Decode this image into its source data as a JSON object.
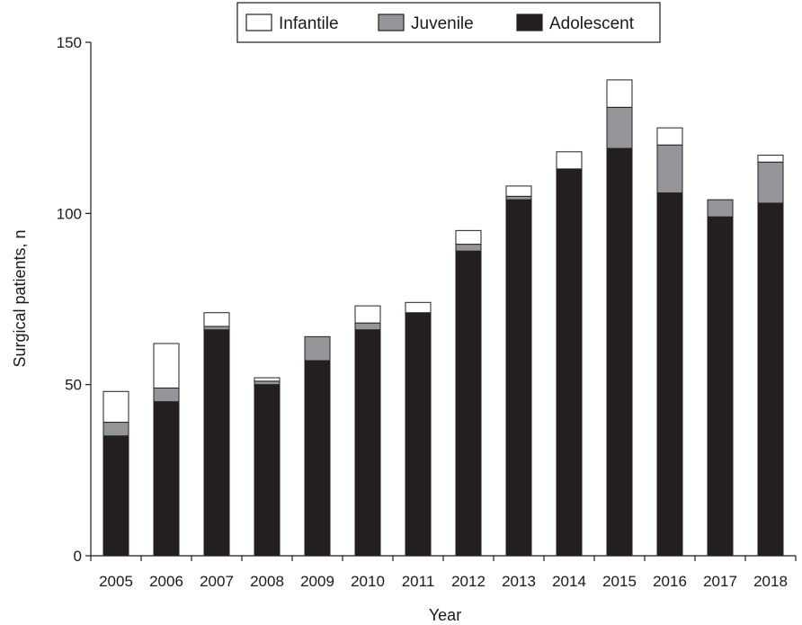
{
  "chart_data": {
    "type": "bar",
    "stacked": true,
    "xlabel": "Year",
    "ylabel": "Surgical patients, n",
    "ylim": [
      0,
      150
    ],
    "yticks": [
      0,
      50,
      100,
      150
    ],
    "categories": [
      "2005",
      "2006",
      "2007",
      "2008",
      "2009",
      "2010",
      "2011",
      "2012",
      "2013",
      "2014",
      "2015",
      "2016",
      "2017",
      "2018"
    ],
    "series": [
      {
        "name": "Adolescent",
        "color": "#231f20",
        "values": [
          35,
          45,
          66,
          50,
          57,
          66,
          71,
          89,
          104,
          113,
          119,
          106,
          99,
          103
        ]
      },
      {
        "name": "Juvenile",
        "color": "#939598",
        "values": [
          4,
          4,
          1,
          1,
          7,
          2,
          0,
          2,
          1,
          0,
          12,
          14,
          5,
          12
        ]
      },
      {
        "name": "Infantile",
        "color": "#ffffff",
        "values": [
          9,
          13,
          4,
          1,
          0,
          5,
          3,
          4,
          3,
          5,
          8,
          5,
          0,
          2
        ]
      }
    ],
    "legend": {
      "position": "top-right",
      "order": [
        "Infantile",
        "Juvenile",
        "Adolescent"
      ]
    },
    "grid": false
  }
}
